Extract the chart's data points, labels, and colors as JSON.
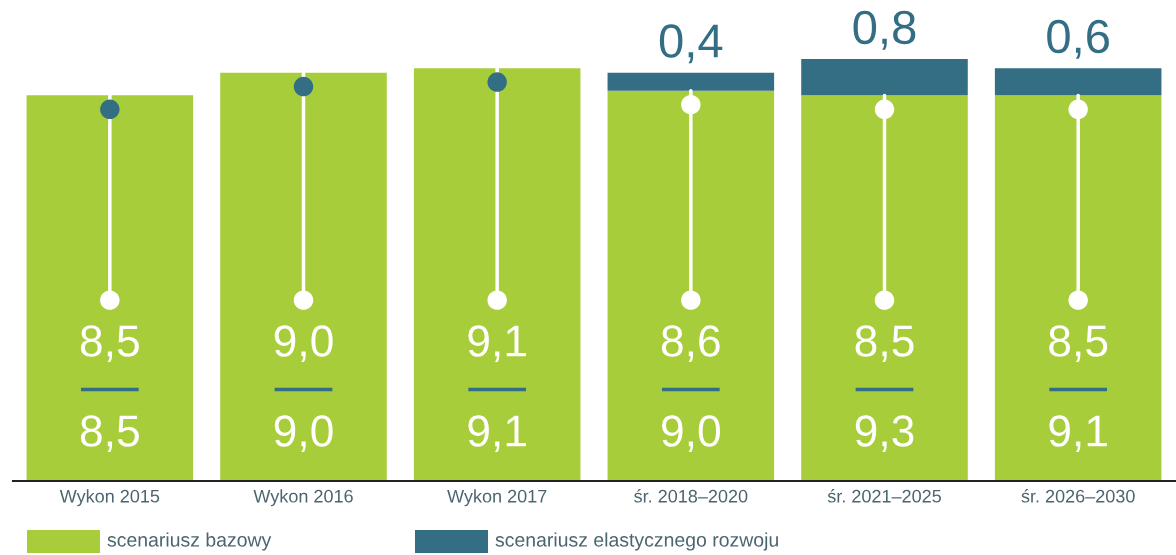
{
  "chart_data": {
    "type": "bar",
    "stacked": true,
    "categories": [
      "Wykon 2015",
      "Wykon 2016",
      "Wykon 2017",
      "śr. 2018–2020",
      "śr. 2021–2025",
      "śr. 2026–2030"
    ],
    "series": [
      {
        "name": "scenariusz bazowy",
        "color": "#a8cd3a",
        "values": [
          8.5,
          9.0,
          9.1,
          8.6,
          8.5,
          8.5
        ],
        "value_labels": [
          "8,5",
          "9,0",
          "9,1",
          "8,6",
          "8,5",
          "8,5"
        ]
      },
      {
        "name": "scenariusz elastycznego rozwoju",
        "color": "#336e84",
        "values": [
          null,
          null,
          null,
          0.4,
          0.8,
          0.6
        ],
        "value_labels": [
          null,
          null,
          null,
          "0,4",
          "0,8",
          "0,6"
        ]
      }
    ],
    "totals": [
      "8,5",
      "9,0",
      "9,1",
      "9,0",
      "9,3",
      "9,1"
    ],
    "tick_labels": "x",
    "legend": "bottom left",
    "grid": false
  }
}
